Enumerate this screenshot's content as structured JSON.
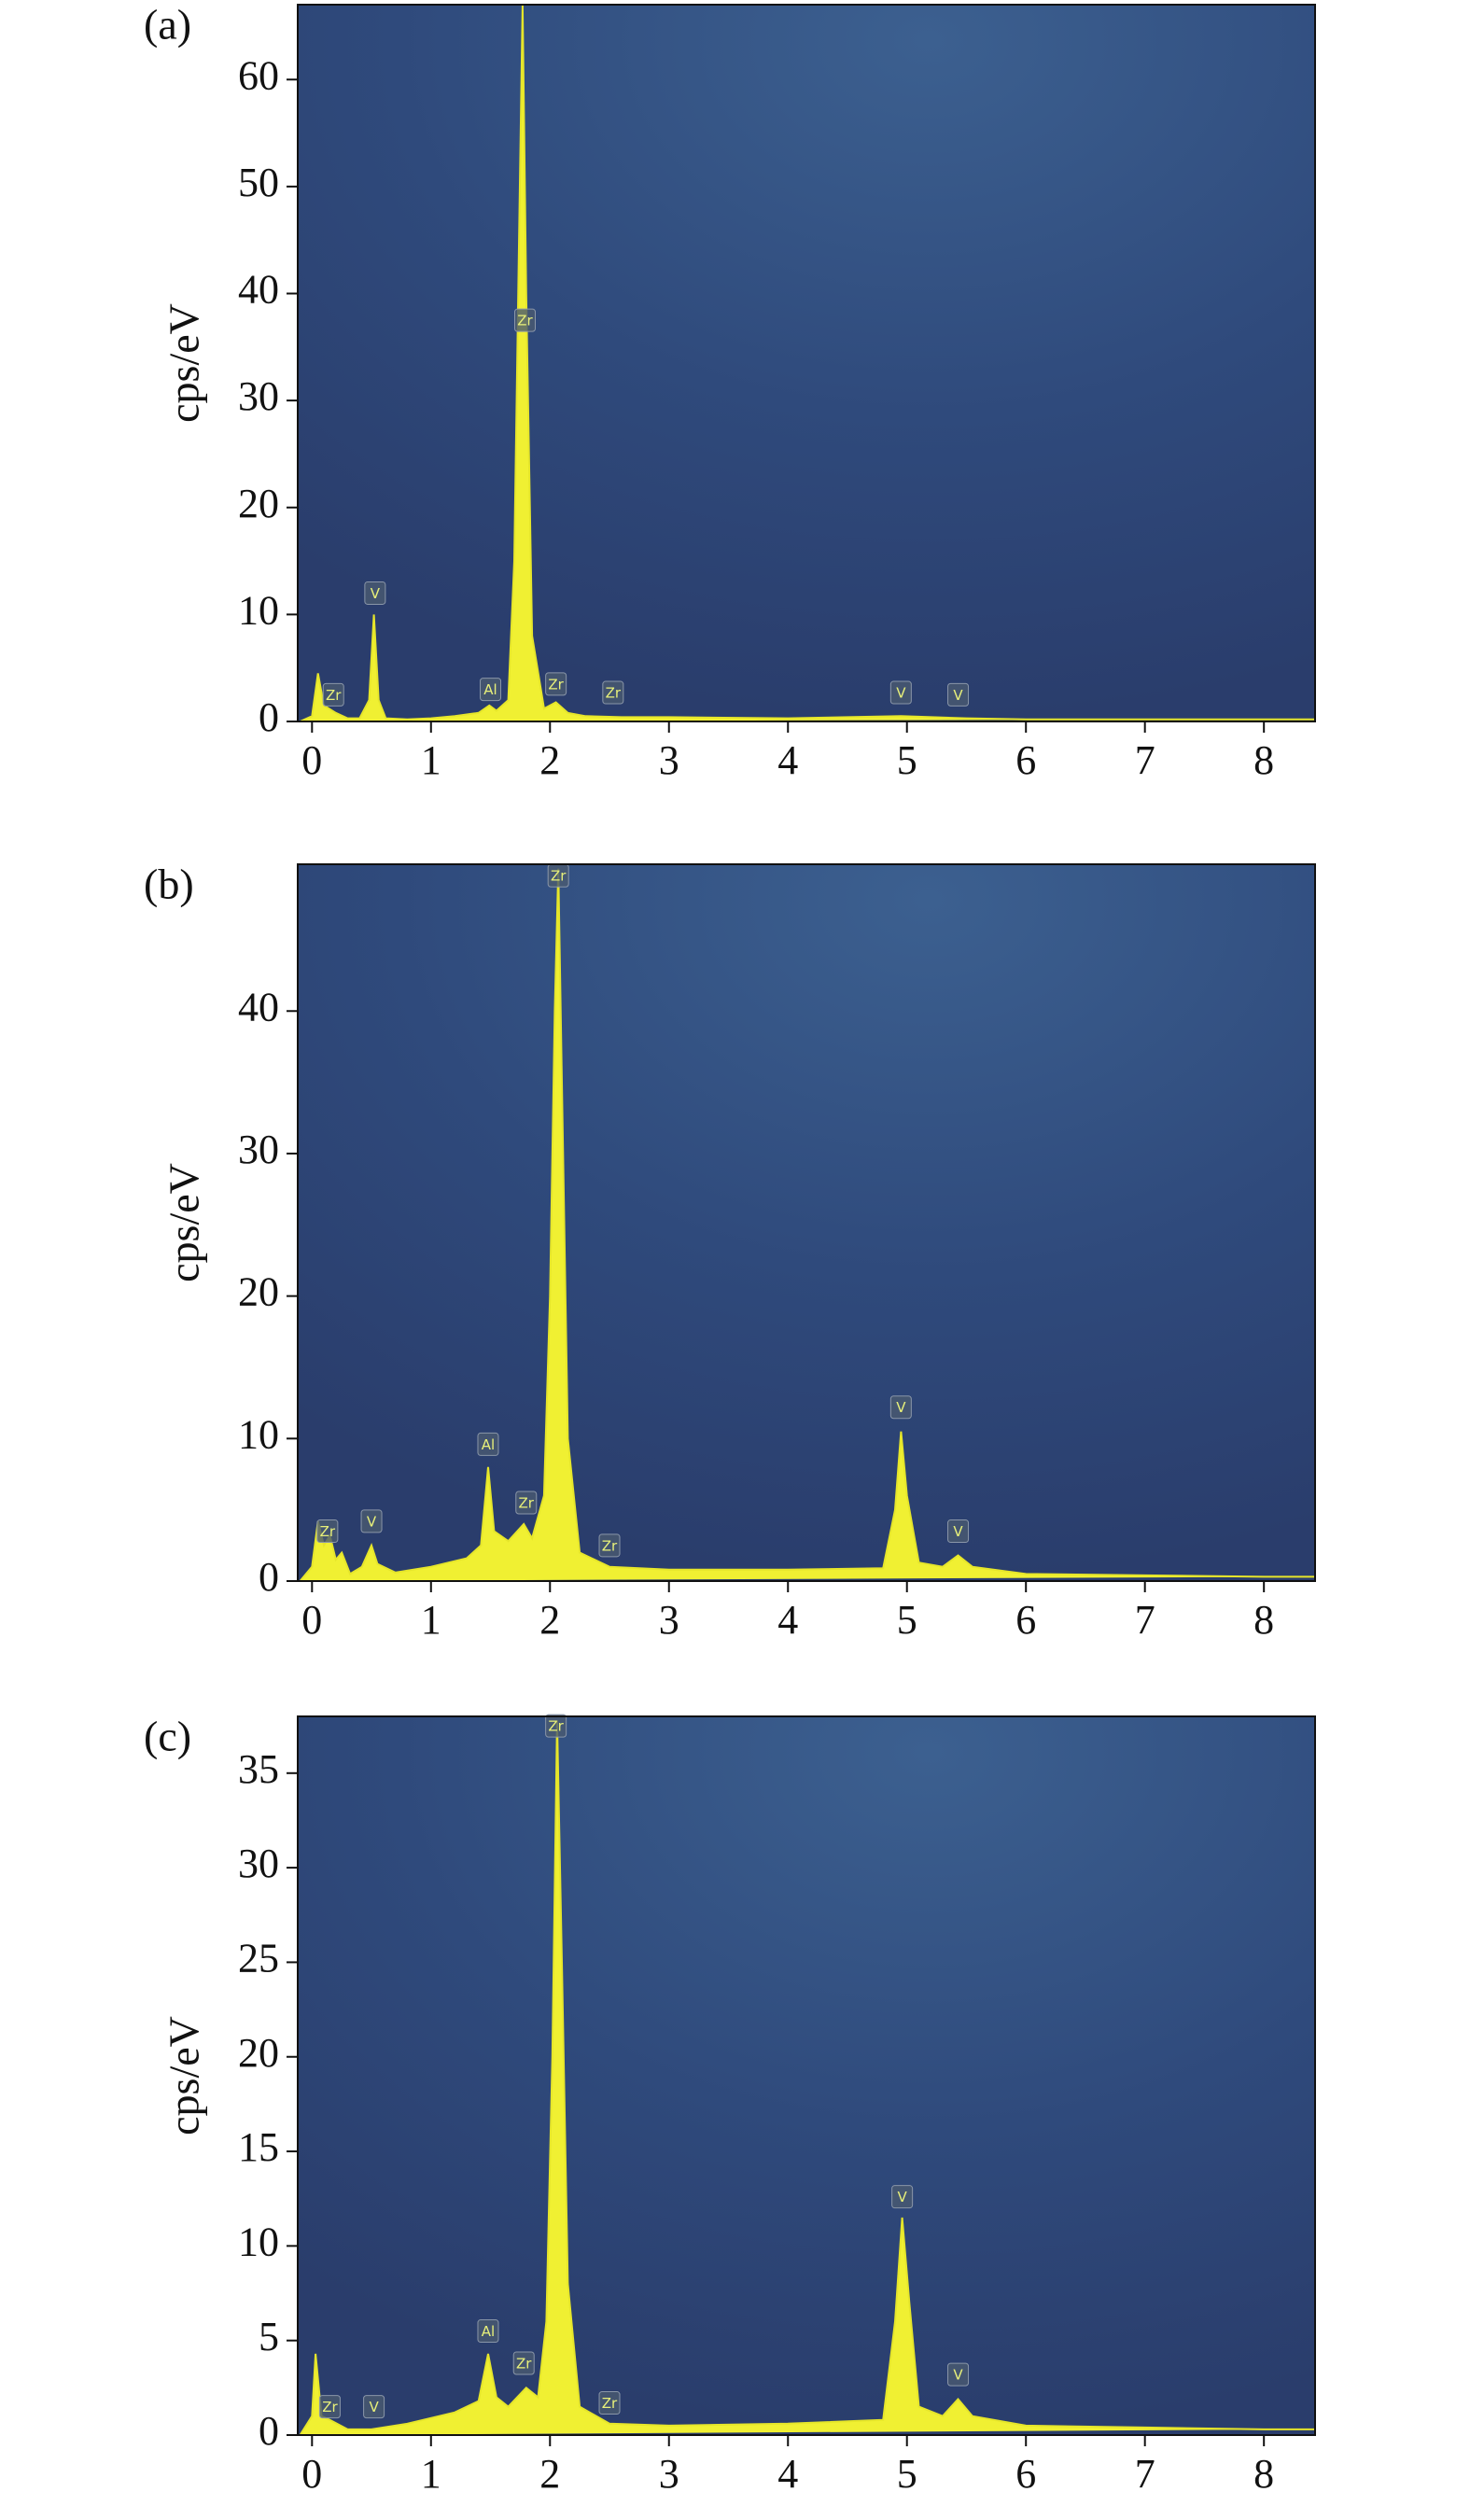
{
  "chart_data": [
    {
      "type": "area",
      "panel_label": "(a)",
      "ylabel": "cps/eV",
      "color": "#f0f032",
      "x": [
        -0.1,
        0,
        0.05,
        0.1,
        0.2,
        0.3,
        0.4,
        0.48,
        0.52,
        0.56,
        0.62,
        0.8,
        1.0,
        1.2,
        1.4,
        1.49,
        1.55,
        1.65,
        1.7,
        1.74,
        1.77,
        1.8,
        1.85,
        1.95,
        2.05,
        2.15,
        2.3,
        2.6,
        3,
        4,
        4.95,
        5.5,
        6,
        7,
        8,
        8.43
      ],
      "values": [
        0,
        0.5,
        4.5,
        1.5,
        0.8,
        0.3,
        0.3,
        2,
        10,
        2,
        0.3,
        0.2,
        0.3,
        0.5,
        0.8,
        1.5,
        1,
        2,
        15,
        45,
        67,
        40,
        8,
        1.2,
        1.8,
        0.8,
        0.5,
        0.4,
        0.4,
        0.3,
        0.5,
        0.3,
        0.2,
        0.2,
        0.2,
        0.2
      ],
      "annotations": [
        {
          "label": "Zr",
          "x": 0.18,
          "y": 2.5
        },
        {
          "label": "V",
          "x": 0.53,
          "y": 12
        },
        {
          "label": "Al",
          "x": 1.5,
          "y": 3
        },
        {
          "label": "Zr",
          "x": 1.79,
          "y": 37.5
        },
        {
          "label": "Zr",
          "x": 2.05,
          "y": 3.5
        },
        {
          "label": "Zr",
          "x": 2.53,
          "y": 2.7
        },
        {
          "label": "V",
          "x": 4.95,
          "y": 2.7
        },
        {
          "label": "V",
          "x": 5.43,
          "y": 2.5
        }
      ],
      "xlim": [
        -0.12,
        8.43
      ],
      "ylim": [
        0,
        67
      ],
      "xticks": [
        0,
        1,
        2,
        3,
        4,
        5,
        6,
        7,
        8
      ],
      "yticks": [
        0,
        10,
        20,
        30,
        40,
        50,
        60
      ]
    },
    {
      "type": "area",
      "panel_label": "(b)",
      "ylabel": "cps/eV",
      "color": "#f0f032",
      "x": [
        -0.1,
        0,
        0.05,
        0.1,
        0.15,
        0.2,
        0.25,
        0.32,
        0.42,
        0.5,
        0.55,
        0.7,
        1.0,
        1.3,
        1.42,
        1.48,
        1.53,
        1.65,
        1.78,
        1.85,
        1.95,
        2.0,
        2.04,
        2.07,
        2.1,
        2.15,
        2.25,
        2.5,
        3,
        4,
        4.8,
        4.9,
        4.95,
        5.0,
        5.1,
        5.3,
        5.43,
        5.55,
        6,
        7,
        8,
        8.43
      ],
      "values": [
        0,
        1,
        4.2,
        2.5,
        3.2,
        1.5,
        2,
        0.5,
        1,
        2.5,
        1.2,
        0.6,
        1,
        1.6,
        2.5,
        8,
        3.5,
        2.8,
        4,
        3,
        6,
        20,
        40,
        50,
        35,
        10,
        2,
        1,
        0.8,
        0.8,
        0.9,
        5,
        10.5,
        6,
        1.3,
        1,
        1.8,
        1,
        0.5,
        0.4,
        0.3,
        0.3
      ],
      "annotations": [
        {
          "label": "Zr",
          "x": 0.13,
          "y": 3.5
        },
        {
          "label": "V",
          "x": 0.5,
          "y": 4.2
        },
        {
          "label": "Al",
          "x": 1.48,
          "y": 9.6
        },
        {
          "label": "Zr",
          "x": 1.8,
          "y": 5.5
        },
        {
          "label": "Zr",
          "x": 2.07,
          "y": 49.5
        },
        {
          "label": "Zr",
          "x": 2.5,
          "y": 2.5
        },
        {
          "label": "V",
          "x": 4.95,
          "y": 12.2
        },
        {
          "label": "V",
          "x": 5.43,
          "y": 3.5
        }
      ],
      "xlim": [
        -0.12,
        8.43
      ],
      "ylim": [
        0,
        50.3
      ],
      "xticks": [
        0,
        1,
        2,
        3,
        4,
        5,
        6,
        7,
        8
      ],
      "yticks": [
        0,
        10,
        20,
        30,
        40
      ]
    },
    {
      "type": "area",
      "panel_label": "(c)",
      "ylabel": "cps/eV",
      "color": "#f0f032",
      "x": [
        -0.1,
        0,
        0.03,
        0.08,
        0.15,
        0.3,
        0.5,
        0.8,
        1.2,
        1.4,
        1.48,
        1.55,
        1.65,
        1.8,
        1.9,
        1.97,
        2.02,
        2.06,
        2.1,
        2.15,
        2.25,
        2.5,
        3,
        4,
        4.8,
        4.9,
        4.96,
        5.02,
        5.1,
        5.3,
        5.43,
        5.55,
        6,
        7,
        8,
        8.43
      ],
      "values": [
        0,
        1,
        4.3,
        1,
        0.8,
        0.3,
        0.3,
        0.6,
        1.2,
        1.8,
        4.3,
        2,
        1.5,
        2.5,
        2,
        6,
        20,
        37.8,
        25,
        8,
        1.5,
        0.6,
        0.5,
        0.6,
        0.8,
        6,
        11.5,
        7,
        1.5,
        1,
        1.9,
        1,
        0.5,
        0.4,
        0.3,
        0.3
      ],
      "annotations": [
        {
          "label": "Zr",
          "x": 0.15,
          "y": 1.5
        },
        {
          "label": "V",
          "x": 0.52,
          "y": 1.5
        },
        {
          "label": "Al",
          "x": 1.48,
          "y": 5.5
        },
        {
          "label": "Zr",
          "x": 1.78,
          "y": 3.8
        },
        {
          "label": "Zr",
          "x": 2.05,
          "y": 37.5
        },
        {
          "label": "Zr",
          "x": 2.5,
          "y": 1.7
        },
        {
          "label": "V",
          "x": 4.96,
          "y": 12.6
        },
        {
          "label": "V",
          "x": 5.43,
          "y": 3.2
        }
      ],
      "xlim": [
        -0.12,
        8.43
      ],
      "ylim": [
        0,
        38
      ],
      "xticks": [
        0,
        1,
        2,
        3,
        4,
        5,
        6,
        7,
        8
      ],
      "yticks": [
        0,
        5,
        10,
        15,
        20,
        25,
        30,
        35
      ]
    }
  ]
}
